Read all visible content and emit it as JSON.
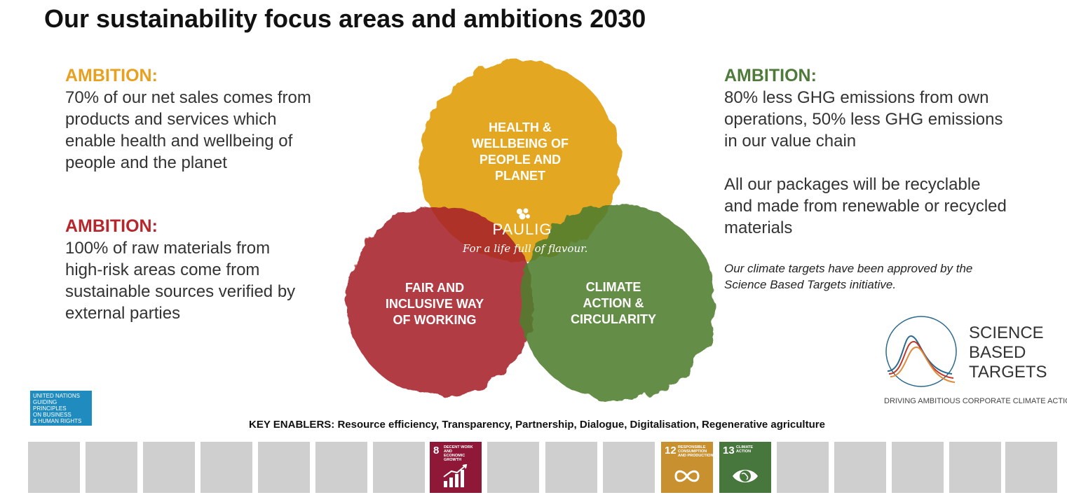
{
  "title": "Our sustainability focus areas and ambitions 2030",
  "ambitions": {
    "health": {
      "heading": "AMBITION:",
      "text": "70% of our net sales comes from\nproducts  and services which\nenable health and wellbeing of\npeople and the planet",
      "color": "#e8a020"
    },
    "fair": {
      "heading": "AMBITION:",
      "text": "100% of raw materials from\nhigh-risk  areas come from\nsustainable sources verified by\nexternal parties",
      "color": "#b5272d"
    },
    "climate": {
      "heading": "AMBITION:",
      "text1": "80% less GHG emissions from own\noperations, 50% less GHG emissions\nin our value chain",
      "text2": "All our packages will be recyclable\nand made from renewable or recycled\nmaterials",
      "color": "#4e7a3a"
    }
  },
  "climate_note": "Our climate targets have been approved by the\nScience Based Targets initiative.",
  "circles": {
    "health": {
      "label": "HEALTH &\nWELLBEING  OF\nPEOPLE AND\nPLANET",
      "color": "#e3a317"
    },
    "fair": {
      "label": "FAIR AND\nINCLUSIVE WAY\nOF  WORKING",
      "color": "#a8222a"
    },
    "climate": {
      "label": "CLIMATE\nACTION  &\nCIRCULARITY",
      "color": "#4f7e2e"
    }
  },
  "logo": {
    "name": "PAULIG",
    "tagline": "For a life full of flavour."
  },
  "ungp": {
    "text": "UNITED NATIONS\nGUIDING PRINCIPLES\nON BUSINESS\n& HUMAN RIGHTS"
  },
  "sbt": {
    "text": "SCIENCE\nBASED\nTARGETS",
    "tagline": "DRIVING AMBITIOUS CORPORATE CLIMATE ACTION"
  },
  "enablers": "KEY ENABLERS: Resource efficiency, Transparency, Partnership, Dialogue, Digitalisation, Regenerative agriculture",
  "sdgs": {
    "goal8": {
      "number": "8",
      "label": "DECENT WORK AND\nECONOMIC GROWTH",
      "color": "#8f1838"
    },
    "goal12": {
      "number": "12",
      "label": "RESPONSIBLE\nCONSUMPTION\nAND PRODUCTION",
      "color": "#c8902f"
    },
    "goal13": {
      "number": "13",
      "label": "CLIMATE\nACTION",
      "color": "#48773e"
    }
  }
}
